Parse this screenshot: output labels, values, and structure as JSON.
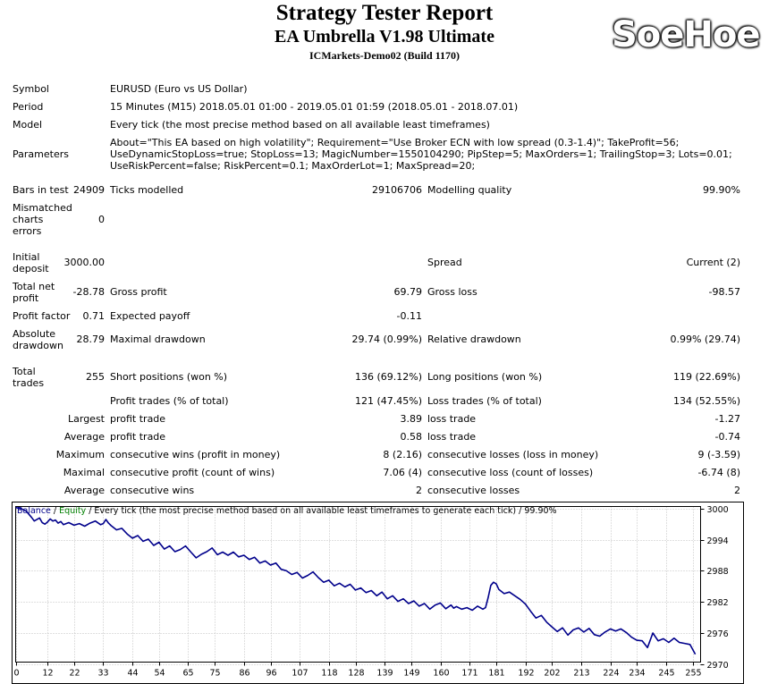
{
  "header": {
    "title": "Strategy Tester Report",
    "ea_name": "EA Umbrella V1.98 Ultimate",
    "server": "ICMarkets-Demo02 (Build 1170)",
    "logo_text": "SoeHoe"
  },
  "summary": {
    "symbol_label": "Symbol",
    "symbol_value": "EURUSD (Euro vs US Dollar)",
    "period_label": "Period",
    "period_value": "15 Minutes (M15) 2018.05.01 01:00 - 2019.05.01 01:59 (2018.05.01 - 2018.07.01)",
    "model_label": "Model",
    "model_value": "Every tick (the most precise method based on all available least timeframes)",
    "parameters_label": "Parameters",
    "parameters_value": "About=\"This EA based on high volatility\"; Requirement=\"Use Broker ECN with low spread (0.3-1.4)\"; TakeProfit=56; UseDynamicStopLoss=true; StopLoss=13; MagicNumber=1550104290; PipStep=5; MaxOrders=1; TrailingStop=3; Lots=0.01; UseRiskPercent=false; RiskPercent=0.1; MaxOrderLot=1; MaxSpread=20;",
    "bars_label": "Bars in test",
    "bars_value": "24909",
    "ticks_label": "Ticks modelled",
    "ticks_value": "29106706",
    "quality_label": "Modelling quality",
    "quality_value": "99.90%",
    "mismatch_label": "Mismatched charts errors",
    "mismatch_value": "0",
    "deposit_label": "Initial deposit",
    "deposit_value": "3000.00",
    "spread_label": "Spread",
    "spread_value": "Current (2)",
    "net_label": "Total net profit",
    "net_value": "-28.78",
    "gross_profit_label": "Gross profit",
    "gross_profit_value": "69.79",
    "gross_loss_label": "Gross loss",
    "gross_loss_value": "-98.57",
    "pf_label": "Profit factor",
    "pf_value": "0.71",
    "payoff_label": "Expected payoff",
    "payoff_value": "-0.11",
    "abs_dd_label": "Absolute drawdown",
    "abs_dd_value": "28.79",
    "max_dd_label": "Maximal drawdown",
    "max_dd_value": "29.74 (0.99%)",
    "rel_dd_label": "Relative drawdown",
    "rel_dd_value": "0.99% (29.74)",
    "trades_label": "Total trades",
    "trades_value": "255",
    "short_label": "Short positions (won %)",
    "short_value": "136 (69.12%)",
    "long_label": "Long positions (won %)",
    "long_value": "119 (22.69%)",
    "profit_trades_label": "Profit trades (% of total)",
    "profit_trades_value": "121 (47.45%)",
    "loss_trades_label": "Loss trades (% of total)",
    "loss_trades_value": "134 (52.55%)",
    "largest_label": "Largest",
    "largest_profit_label": "profit trade",
    "largest_profit_value": "3.89",
    "largest_loss_label": "loss trade",
    "largest_loss_value": "-1.27",
    "average_label": "Average",
    "average_profit_label": "profit trade",
    "average_profit_value": "0.58",
    "average_loss_label": "loss trade",
    "average_loss_value": "-0.74",
    "maximum_label": "Maximum",
    "max_cons_wins_label": "consecutive wins (profit in money)",
    "max_cons_wins_value": "8 (2.16)",
    "max_cons_losses_label": "consecutive losses (loss in money)",
    "max_cons_losses_value": "9 (-3.59)",
    "maximal_label": "Maximal",
    "maximal_cons_profit_label": "consecutive profit (count of wins)",
    "maximal_cons_profit_value": "7.06 (4)",
    "maximal_cons_loss_label": "consecutive loss (count of losses)",
    "maximal_cons_loss_value": "-6.74 (8)",
    "avg2_label": "Average",
    "avg_cons_wins_label": "consecutive wins",
    "avg_cons_wins_value": "2",
    "avg_cons_losses_label": "consecutive losses",
    "avg_cons_losses_value": "2"
  },
  "chart_data": {
    "type": "line",
    "legend_balance": "Balance",
    "legend_sep": " / ",
    "legend_equity": "Equity",
    "legend_rest": " / Every tick (the most precise method based on all available least timeframes to generate each tick) / 99.90%",
    "x_ticks": [
      "0",
      "12",
      "22",
      "33",
      "44",
      "54",
      "65",
      "75",
      "86",
      "96",
      "107",
      "118",
      "128",
      "139",
      "149",
      "160",
      "171",
      "181",
      "192",
      "202",
      "213",
      "224",
      "234",
      "245",
      "255"
    ],
    "y_ticks": [
      "3000",
      "2994",
      "2988",
      "2982",
      "2976",
      "2970"
    ],
    "ylim": [
      2970.4,
      3000.4
    ],
    "xlim": [
      0,
      258
    ],
    "colors": {
      "balance": "#00008b",
      "equity": "#008000",
      "grid": "#c0c0c0",
      "border": "#000000"
    },
    "series": [
      {
        "name": "Balance",
        "x": [
          0,
          2,
          4,
          6,
          7,
          9,
          10,
          11,
          12,
          13,
          14,
          15,
          16,
          17,
          18,
          20,
          22,
          24,
          26,
          28,
          30,
          32,
          33,
          34,
          35,
          36,
          38,
          40,
          42,
          44,
          46,
          48,
          50,
          52,
          54,
          56,
          58,
          60,
          62,
          64,
          66,
          68,
          70,
          72,
          74,
          76,
          78,
          80,
          82,
          84,
          86,
          88,
          90,
          92,
          94,
          96,
          98,
          100,
          102,
          104,
          106,
          108,
          110,
          112,
          114,
          116,
          118,
          120,
          122,
          124,
          126,
          128,
          130,
          132,
          134,
          136,
          138,
          140,
          142,
          144,
          146,
          148,
          150,
          152,
          154,
          156,
          158,
          160,
          162,
          164,
          165,
          166,
          168,
          170,
          172,
          174,
          176,
          177,
          178,
          179,
          180,
          181,
          182,
          184,
          186,
          188,
          190,
          192,
          194,
          196,
          198,
          200,
          202,
          204,
          206,
          208,
          210,
          212,
          214,
          216,
          218,
          220,
          222,
          224,
          226,
          228,
          230,
          232,
          234,
          236,
          238,
          240,
          242,
          244,
          246,
          248,
          250,
          252,
          254,
          256
        ],
        "y": [
          3000.2,
          3000.0,
          2999.5,
          2998.3,
          2997.6,
          2998.2,
          2997.3,
          2997.0,
          2997.4,
          2998.0,
          2997.6,
          2997.8,
          2997.2,
          2997.5,
          2996.9,
          2997.3,
          2996.8,
          2997.1,
          2996.6,
          2997.2,
          2997.6,
          2996.9,
          2997.1,
          2997.9,
          2997.2,
          2996.7,
          2995.9,
          2996.2,
          2995.1,
          2994.3,
          2994.8,
          2993.7,
          2994.1,
          2992.9,
          2993.5,
          2992.2,
          2992.8,
          2991.7,
          2992.1,
          2992.8,
          2991.6,
          2990.5,
          2991.2,
          2991.7,
          2992.4,
          2991.1,
          2991.6,
          2991.0,
          2991.6,
          2990.7,
          2991.0,
          2990.2,
          2990.6,
          2989.5,
          2989.9,
          2989.1,
          2989.5,
          2988.3,
          2988.0,
          2987.3,
          2987.7,
          2986.6,
          2987.1,
          2987.8,
          2986.7,
          2985.8,
          2986.2,
          2985.1,
          2985.6,
          2984.9,
          2985.4,
          2984.3,
          2984.7,
          2983.8,
          2984.2,
          2983.2,
          2983.9,
          2982.6,
          2983.2,
          2982.1,
          2982.6,
          2981.7,
          2982.2,
          2981.2,
          2981.7,
          2980.6,
          2981.4,
          2981.8,
          2980.7,
          2981.4,
          2980.8,
          2981.1,
          2980.6,
          2980.9,
          2980.4,
          2981.2,
          2980.6,
          2980.9,
          2982.9,
          2985.2,
          2985.8,
          2985.5,
          2984.4,
          2983.6,
          2983.9,
          2983.2,
          2982.5,
          2981.6,
          2980.2,
          2978.9,
          2979.4,
          2978.1,
          2977.2,
          2976.3,
          2977.0,
          2975.6,
          2976.6,
          2977.0,
          2976.2,
          2976.9,
          2975.7,
          2975.4,
          2976.2,
          2976.8,
          2976.4,
          2976.8,
          2976.1,
          2975.2,
          2974.6,
          2974.5,
          2973.2,
          2976.0,
          2974.5,
          2974.9,
          2974.2,
          2975.0,
          2974.2,
          2974.0,
          2973.8,
          2971.9
        ]
      }
    ]
  }
}
